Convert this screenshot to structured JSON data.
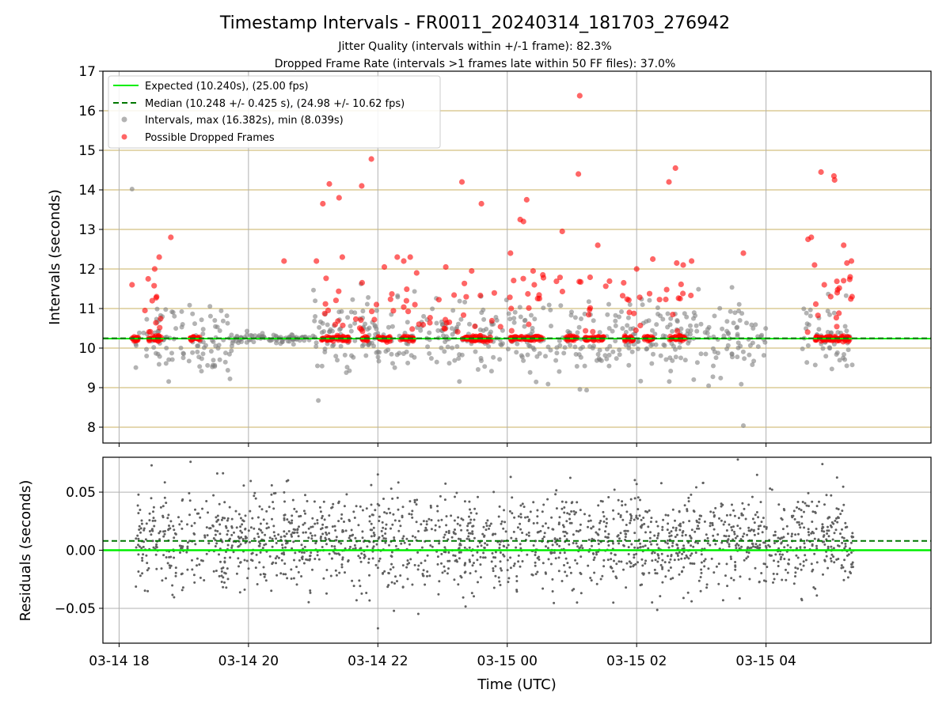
{
  "figure": {
    "title": "Timestamp Intervals - FR0011_20240314_181703_276942",
    "subtitle_1": "Jitter Quality (intervals within +/-1 frame): 82.3%",
    "subtitle_2": "Dropped Frame Rate (intervals >1 frames late within 50 FF files): 37.0%",
    "xlabel": "Time (UTC)"
  },
  "colors": {
    "expected": "#00ee00",
    "median": "#007700",
    "intervals": "#808080",
    "dropped": "#ff0000",
    "hgrid_top": "#c8b060",
    "grid": "#b0b0b0",
    "residual_points": "#606060"
  },
  "chart_data": [
    {
      "name": "intervals-panel",
      "type": "scatter",
      "ylabel": "Intervals (seconds)",
      "ylim": [
        7.6,
        17.0
      ],
      "yticks": [
        8,
        9,
        10,
        11,
        12,
        13,
        14,
        15,
        16,
        17
      ],
      "x_domain_hours": [
        17.75,
        30.55
      ],
      "xticks": [
        {
          "value": 18,
          "label": "03-14 18"
        },
        {
          "value": 20,
          "label": "03-14 20"
        },
        {
          "value": 22,
          "label": "03-14 22"
        },
        {
          "value": 24,
          "label": "03-15 00"
        },
        {
          "value": 26,
          "label": "03-15 02"
        },
        {
          "value": 28,
          "label": "03-15 04"
        }
      ],
      "expected": 10.24,
      "median": 10.248,
      "median_std": 0.425,
      "max": 16.382,
      "min": 8.039,
      "legend": [
        {
          "label": "Expected (10.240s), (25.00 fps)",
          "style": "solid-line",
          "color_key": "expected"
        },
        {
          "label": "Median (10.248 +/- 0.425 s), (24.98 +/- 10.62 fps)",
          "style": "dashed-line",
          "color_key": "median"
        },
        {
          "label": "Intervals, max (16.382s), min (8.039s)",
          "style": "dot",
          "color_key": "intervals"
        },
        {
          "label": "Possible Dropped Frames",
          "style": "dot",
          "color_key": "dropped"
        }
      ],
      "legend_position": "top-left",
      "grid": true,
      "dropped_points": [
        {
          "x": 18.2,
          "y": 11.6
        },
        {
          "x": 18.55,
          "y": 12.0
        },
        {
          "x": 18.62,
          "y": 12.3
        },
        {
          "x": 18.8,
          "y": 12.8
        },
        {
          "x": 18.45,
          "y": 11.75
        },
        {
          "x": 18.58,
          "y": 11.3
        },
        {
          "x": 18.4,
          "y": 10.95
        },
        {
          "x": 21.05,
          "y": 12.2
        },
        {
          "x": 20.55,
          "y": 12.2
        },
        {
          "x": 21.25,
          "y": 14.15
        },
        {
          "x": 21.45,
          "y": 12.3
        },
        {
          "x": 21.75,
          "y": 14.1
        },
        {
          "x": 21.9,
          "y": 14.78
        },
        {
          "x": 21.4,
          "y": 13.8
        },
        {
          "x": 21.15,
          "y": 13.65
        },
        {
          "x": 22.3,
          "y": 12.3
        },
        {
          "x": 22.5,
          "y": 12.3
        },
        {
          "x": 22.1,
          "y": 12.05
        },
        {
          "x": 22.4,
          "y": 12.2
        },
        {
          "x": 22.6,
          "y": 11.9
        },
        {
          "x": 23.05,
          "y": 12.05
        },
        {
          "x": 23.3,
          "y": 14.2
        },
        {
          "x": 23.6,
          "y": 13.65
        },
        {
          "x": 23.45,
          "y": 11.95
        },
        {
          "x": 24.05,
          "y": 12.4
        },
        {
          "x": 24.2,
          "y": 13.25
        },
        {
          "x": 24.25,
          "y": 13.2
        },
        {
          "x": 24.3,
          "y": 13.75
        },
        {
          "x": 24.4,
          "y": 11.95
        },
        {
          "x": 24.55,
          "y": 11.85
        },
        {
          "x": 24.85,
          "y": 12.95
        },
        {
          "x": 25.1,
          "y": 14.4
        },
        {
          "x": 25.12,
          "y": 16.38
        },
        {
          "x": 25.4,
          "y": 12.6
        },
        {
          "x": 25.8,
          "y": 11.65
        },
        {
          "x": 26.0,
          "y": 12.0
        },
        {
          "x": 26.25,
          "y": 12.25
        },
        {
          "x": 26.5,
          "y": 14.2
        },
        {
          "x": 26.6,
          "y": 14.55
        },
        {
          "x": 26.62,
          "y": 12.15
        },
        {
          "x": 26.72,
          "y": 12.1
        },
        {
          "x": 26.85,
          "y": 12.2
        },
        {
          "x": 27.65,
          "y": 12.4
        },
        {
          "x": 28.65,
          "y": 12.75
        },
        {
          "x": 28.7,
          "y": 12.8
        },
        {
          "x": 28.85,
          "y": 14.45
        },
        {
          "x": 29.05,
          "y": 14.35
        },
        {
          "x": 29.06,
          "y": 14.25
        },
        {
          "x": 29.2,
          "y": 12.6
        },
        {
          "x": 29.25,
          "y": 12.15
        },
        {
          "x": 29.3,
          "y": 11.8
        },
        {
          "x": 29.32,
          "y": 12.2
        },
        {
          "x": 28.75,
          "y": 12.1
        },
        {
          "x": 28.9,
          "y": 11.6
        },
        {
          "x": 29.1,
          "y": 11.4
        },
        {
          "x": 29.0,
          "y": 11.3
        },
        {
          "x": 29.33,
          "y": 11.3
        }
      ]
    },
    {
      "name": "residuals-panel",
      "type": "scatter",
      "ylabel": "Residuals (seconds)",
      "ylim": [
        -0.08,
        0.08
      ],
      "yticks": [
        {
          "value": 0.05,
          "label": "0.05"
        },
        {
          "value": 0.0,
          "label": "0.00"
        },
        {
          "value": -0.05,
          "label": "−0.05"
        }
      ],
      "xticks": [
        {
          "value": 18,
          "label": "03-14 18"
        },
        {
          "value": 20,
          "label": "03-14 20"
        },
        {
          "value": 22,
          "label": "03-14 22"
        },
        {
          "value": 24,
          "label": "03-15 00"
        },
        {
          "value": 26,
          "label": "03-15 02"
        },
        {
          "value": 28,
          "label": "03-15 04"
        }
      ],
      "expected": 0.0,
      "median": 0.008,
      "grid": true
    }
  ]
}
